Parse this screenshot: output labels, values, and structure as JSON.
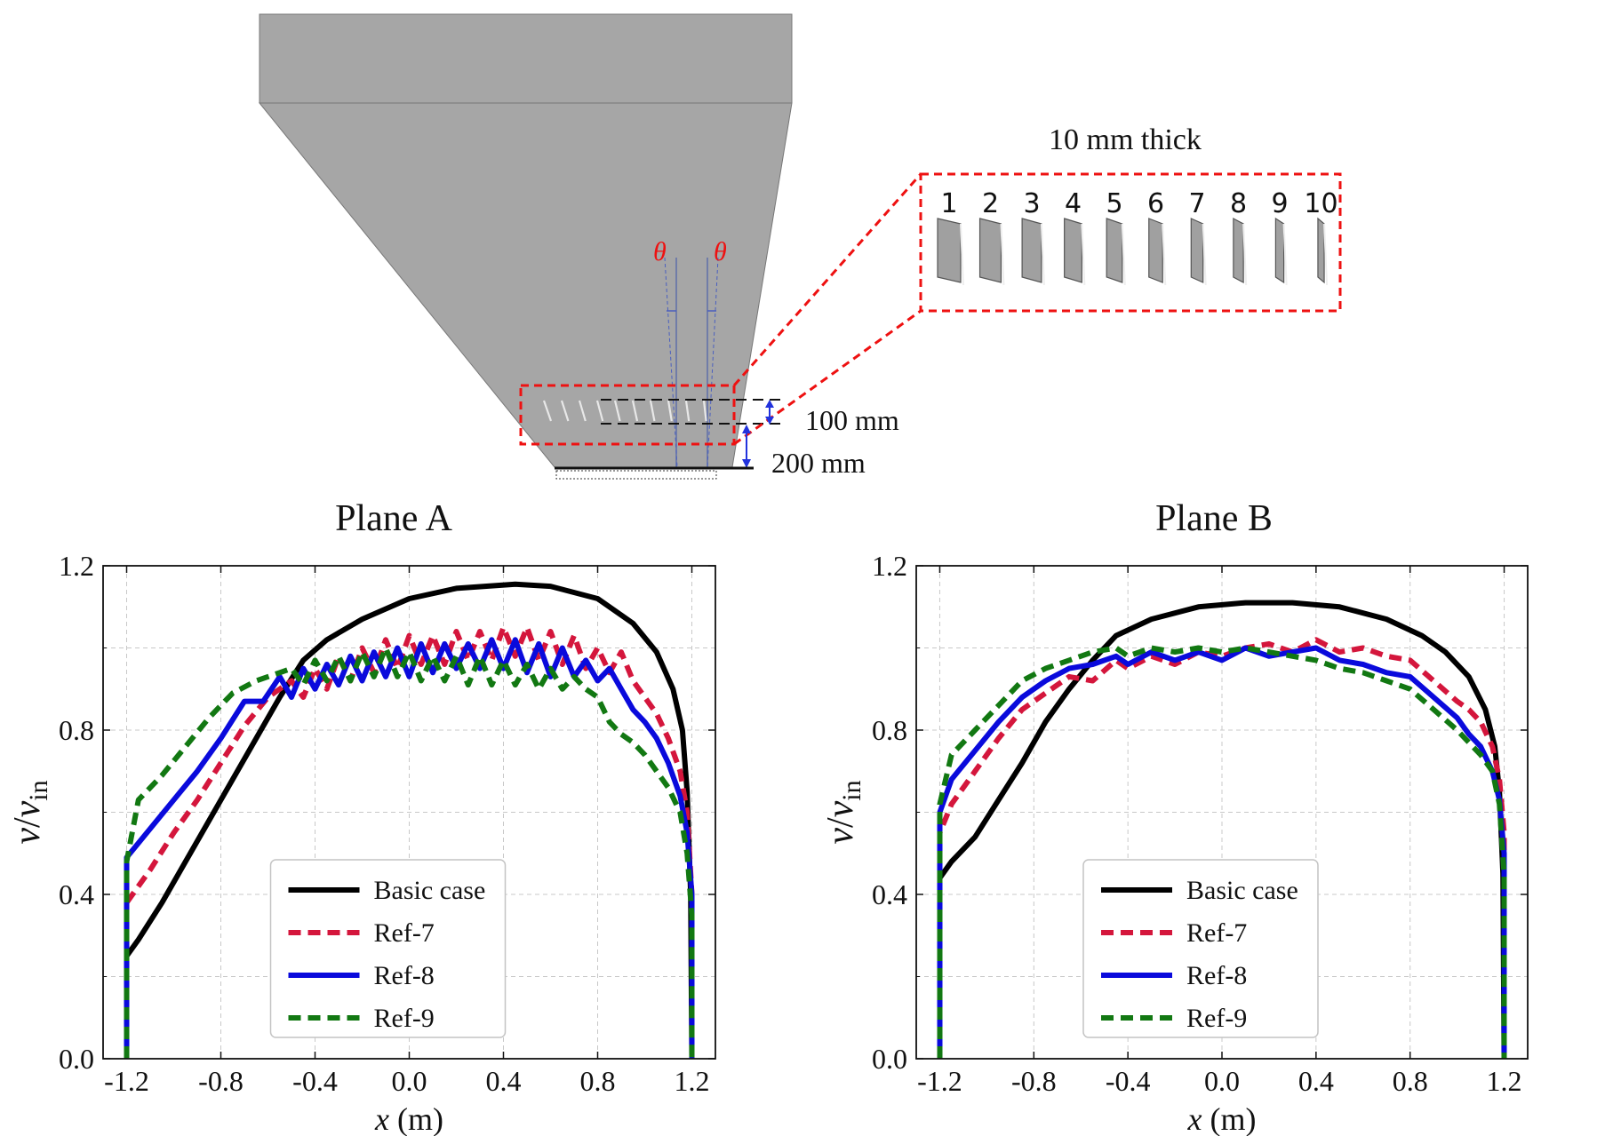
{
  "schematic": {
    "thickness_label": "10 mm thick",
    "angle_symbol": "θ",
    "spacing_label": "100 mm",
    "height_label": "200 mm",
    "plate_numbers": [
      "1",
      "2",
      "3",
      "4",
      "5",
      "6",
      "7",
      "8",
      "9",
      "10"
    ]
  },
  "colors": {
    "Basic case": "#000000",
    "Ref-7": "#d4163c",
    "Ref-8": "#0a0adc",
    "Ref-9": "#127812",
    "hopper": "#a6a6a6",
    "highlight": "#ee1111"
  },
  "chart_data": [
    {
      "type": "line",
      "title": "Plane A",
      "xlabel": "x (m)",
      "ylabel": "v/v_in",
      "xlim": [
        -1.3,
        1.3
      ],
      "ylim": [
        0.0,
        1.2
      ],
      "xticks": [
        "-1.2",
        "-0.8",
        "-0.4",
        "0.0",
        "0.4",
        "0.8",
        "1.2"
      ],
      "yticks": [
        "0.0",
        "0.4",
        "0.8",
        "1.2"
      ],
      "grid": true,
      "legend": "lower center",
      "series": [
        {
          "name": "Basic case",
          "style": "solid",
          "x": [
            -1.2,
            -1.2,
            -1.15,
            -1.05,
            -0.95,
            -0.85,
            -0.75,
            -0.65,
            -0.55,
            -0.45,
            -0.35,
            -0.2,
            0.0,
            0.2,
            0.45,
            0.6,
            0.8,
            0.95,
            1.05,
            1.12,
            1.16,
            1.18,
            1.195,
            1.2
          ],
          "y": [
            0.0,
            0.25,
            0.29,
            0.38,
            0.48,
            0.58,
            0.68,
            0.78,
            0.88,
            0.97,
            1.02,
            1.07,
            1.12,
            1.145,
            1.155,
            1.15,
            1.12,
            1.06,
            0.99,
            0.9,
            0.8,
            0.65,
            0.4,
            0.0
          ]
        },
        {
          "name": "Ref-7",
          "style": "dashed",
          "x": [
            -1.2,
            -1.2,
            -1.1,
            -1.0,
            -0.9,
            -0.8,
            -0.7,
            -0.6,
            -0.5,
            -0.45,
            -0.4,
            -0.35,
            -0.3,
            -0.25,
            -0.2,
            -0.15,
            -0.1,
            -0.05,
            0.0,
            0.05,
            0.1,
            0.15,
            0.2,
            0.25,
            0.3,
            0.35,
            0.4,
            0.45,
            0.5,
            0.55,
            0.6,
            0.65,
            0.7,
            0.75,
            0.8,
            0.85,
            0.9,
            0.95,
            1.0,
            1.05,
            1.1,
            1.15,
            1.18,
            1.2,
            1.2
          ],
          "y": [
            0.0,
            0.38,
            0.46,
            0.55,
            0.63,
            0.72,
            0.81,
            0.88,
            0.92,
            0.88,
            0.95,
            0.9,
            0.98,
            0.92,
            1.0,
            0.94,
            1.02,
            0.95,
            1.03,
            0.96,
            1.03,
            0.96,
            1.04,
            0.97,
            1.04,
            0.97,
            1.05,
            0.98,
            1.05,
            0.97,
            1.04,
            0.96,
            1.03,
            0.95,
            1.0,
            0.94,
            0.99,
            0.92,
            0.88,
            0.84,
            0.78,
            0.7,
            0.6,
            0.4,
            0.0
          ]
        },
        {
          "name": "Ref-8",
          "style": "solid",
          "x": [
            -1.2,
            -1.2,
            -1.1,
            -1.0,
            -0.9,
            -0.8,
            -0.7,
            -0.62,
            -0.55,
            -0.5,
            -0.45,
            -0.4,
            -0.35,
            -0.3,
            -0.25,
            -0.2,
            -0.15,
            -0.1,
            -0.05,
            0.0,
            0.05,
            0.1,
            0.15,
            0.2,
            0.25,
            0.3,
            0.35,
            0.4,
            0.45,
            0.5,
            0.55,
            0.6,
            0.65,
            0.7,
            0.75,
            0.8,
            0.85,
            0.9,
            0.95,
            1.0,
            1.05,
            1.1,
            1.15,
            1.18,
            1.2,
            1.2
          ],
          "y": [
            0.0,
            0.49,
            0.56,
            0.63,
            0.7,
            0.78,
            0.87,
            0.87,
            0.93,
            0.88,
            0.95,
            0.9,
            0.96,
            0.91,
            0.98,
            0.92,
            0.99,
            0.93,
            1.0,
            0.93,
            1.01,
            0.94,
            1.01,
            0.95,
            1.01,
            0.95,
            1.02,
            0.95,
            1.02,
            0.94,
            1.01,
            0.93,
            1.0,
            0.93,
            0.97,
            0.92,
            0.95,
            0.9,
            0.85,
            0.82,
            0.78,
            0.72,
            0.64,
            0.55,
            0.4,
            0.0
          ]
        },
        {
          "name": "Ref-9",
          "style": "dashed",
          "x": [
            -1.2,
            -1.2,
            -1.15,
            -1.05,
            -0.95,
            -0.85,
            -0.75,
            -0.65,
            -0.55,
            -0.5,
            -0.45,
            -0.4,
            -0.35,
            -0.3,
            -0.25,
            -0.2,
            -0.15,
            -0.1,
            -0.05,
            0.0,
            0.05,
            0.1,
            0.15,
            0.2,
            0.25,
            0.3,
            0.35,
            0.4,
            0.45,
            0.5,
            0.55,
            0.6,
            0.65,
            0.7,
            0.75,
            0.8,
            0.85,
            0.9,
            0.95,
            1.0,
            1.05,
            1.1,
            1.15,
            1.18,
            1.2,
            1.2
          ],
          "y": [
            0.0,
            0.48,
            0.63,
            0.69,
            0.76,
            0.83,
            0.89,
            0.92,
            0.94,
            0.95,
            0.91,
            0.97,
            0.92,
            0.98,
            0.92,
            0.99,
            0.93,
            1.0,
            0.93,
            0.99,
            0.92,
            0.98,
            0.92,
            0.98,
            0.91,
            0.98,
            0.91,
            0.97,
            0.91,
            0.96,
            0.9,
            0.95,
            0.9,
            0.93,
            0.9,
            0.88,
            0.82,
            0.79,
            0.77,
            0.74,
            0.7,
            0.66,
            0.6,
            0.5,
            0.35,
            0.0
          ]
        }
      ]
    },
    {
      "type": "line",
      "title": "Plane B",
      "xlabel": "x (m)",
      "ylabel": "v/v_in",
      "xlim": [
        -1.3,
        1.3
      ],
      "ylim": [
        0.0,
        1.2
      ],
      "xticks": [
        "-1.2",
        "-0.8",
        "-0.4",
        "0.0",
        "0.4",
        "0.8",
        "1.2"
      ],
      "yticks": [
        "0.0",
        "0.4",
        "0.8",
        "1.2"
      ],
      "grid": true,
      "legend": "lower center",
      "series": [
        {
          "name": "Basic case",
          "style": "solid",
          "x": [
            -1.2,
            -1.2,
            -1.15,
            -1.05,
            -0.95,
            -0.85,
            -0.75,
            -0.65,
            -0.55,
            -0.45,
            -0.3,
            -0.1,
            0.1,
            0.3,
            0.5,
            0.7,
            0.85,
            0.95,
            1.05,
            1.12,
            1.16,
            1.18,
            1.195,
            1.2
          ],
          "y": [
            0.0,
            0.44,
            0.48,
            0.54,
            0.63,
            0.72,
            0.82,
            0.9,
            0.97,
            1.03,
            1.07,
            1.1,
            1.11,
            1.11,
            1.1,
            1.07,
            1.03,
            0.99,
            0.93,
            0.85,
            0.76,
            0.65,
            0.45,
            0.0
          ]
        },
        {
          "name": "Ref-7",
          "style": "dashed",
          "x": [
            -1.2,
            -1.2,
            -1.15,
            -1.05,
            -0.95,
            -0.85,
            -0.75,
            -0.65,
            -0.55,
            -0.45,
            -0.4,
            -0.3,
            -0.2,
            -0.1,
            0.0,
            0.1,
            0.2,
            0.3,
            0.4,
            0.5,
            0.6,
            0.7,
            0.8,
            0.9,
            1.0,
            1.05,
            1.1,
            1.15,
            1.18,
            1.2,
            1.2
          ],
          "y": [
            0.0,
            0.55,
            0.62,
            0.7,
            0.78,
            0.85,
            0.89,
            0.93,
            0.92,
            0.97,
            0.95,
            0.98,
            0.96,
            0.99,
            0.98,
            1.0,
            1.01,
            0.99,
            1.02,
            0.99,
            1.0,
            0.98,
            0.97,
            0.92,
            0.87,
            0.85,
            0.82,
            0.76,
            0.68,
            0.55,
            0.0
          ]
        },
        {
          "name": "Ref-8",
          "style": "solid",
          "x": [
            -1.2,
            -1.2,
            -1.15,
            -1.05,
            -0.95,
            -0.85,
            -0.75,
            -0.65,
            -0.55,
            -0.45,
            -0.4,
            -0.3,
            -0.2,
            -0.1,
            0.0,
            0.1,
            0.2,
            0.3,
            0.4,
            0.5,
            0.6,
            0.7,
            0.8,
            0.9,
            1.0,
            1.05,
            1.1,
            1.15,
            1.18,
            1.2,
            1.2
          ],
          "y": [
            0.0,
            0.6,
            0.68,
            0.75,
            0.82,
            0.88,
            0.92,
            0.95,
            0.96,
            0.98,
            0.96,
            0.99,
            0.97,
            0.99,
            0.97,
            1.0,
            0.98,
            0.99,
            1.0,
            0.97,
            0.96,
            0.94,
            0.93,
            0.88,
            0.83,
            0.79,
            0.76,
            0.7,
            0.63,
            0.5,
            0.0
          ]
        },
        {
          "name": "Ref-9",
          "style": "dashed",
          "x": [
            -1.2,
            -1.2,
            -1.15,
            -1.05,
            -0.95,
            -0.85,
            -0.75,
            -0.65,
            -0.55,
            -0.45,
            -0.4,
            -0.3,
            -0.2,
            -0.1,
            0.0,
            0.1,
            0.2,
            0.3,
            0.4,
            0.5,
            0.6,
            0.7,
            0.8,
            0.9,
            1.0,
            1.05,
            1.1,
            1.15,
            1.18,
            1.2,
            1.2
          ],
          "y": [
            0.0,
            0.62,
            0.74,
            0.8,
            0.86,
            0.92,
            0.95,
            0.97,
            0.99,
            1.0,
            0.98,
            1.0,
            0.99,
            1.0,
            0.99,
            1.0,
            0.99,
            0.98,
            0.97,
            0.95,
            0.94,
            0.92,
            0.9,
            0.85,
            0.8,
            0.77,
            0.74,
            0.7,
            0.62,
            0.45,
            0.0
          ]
        }
      ]
    }
  ]
}
